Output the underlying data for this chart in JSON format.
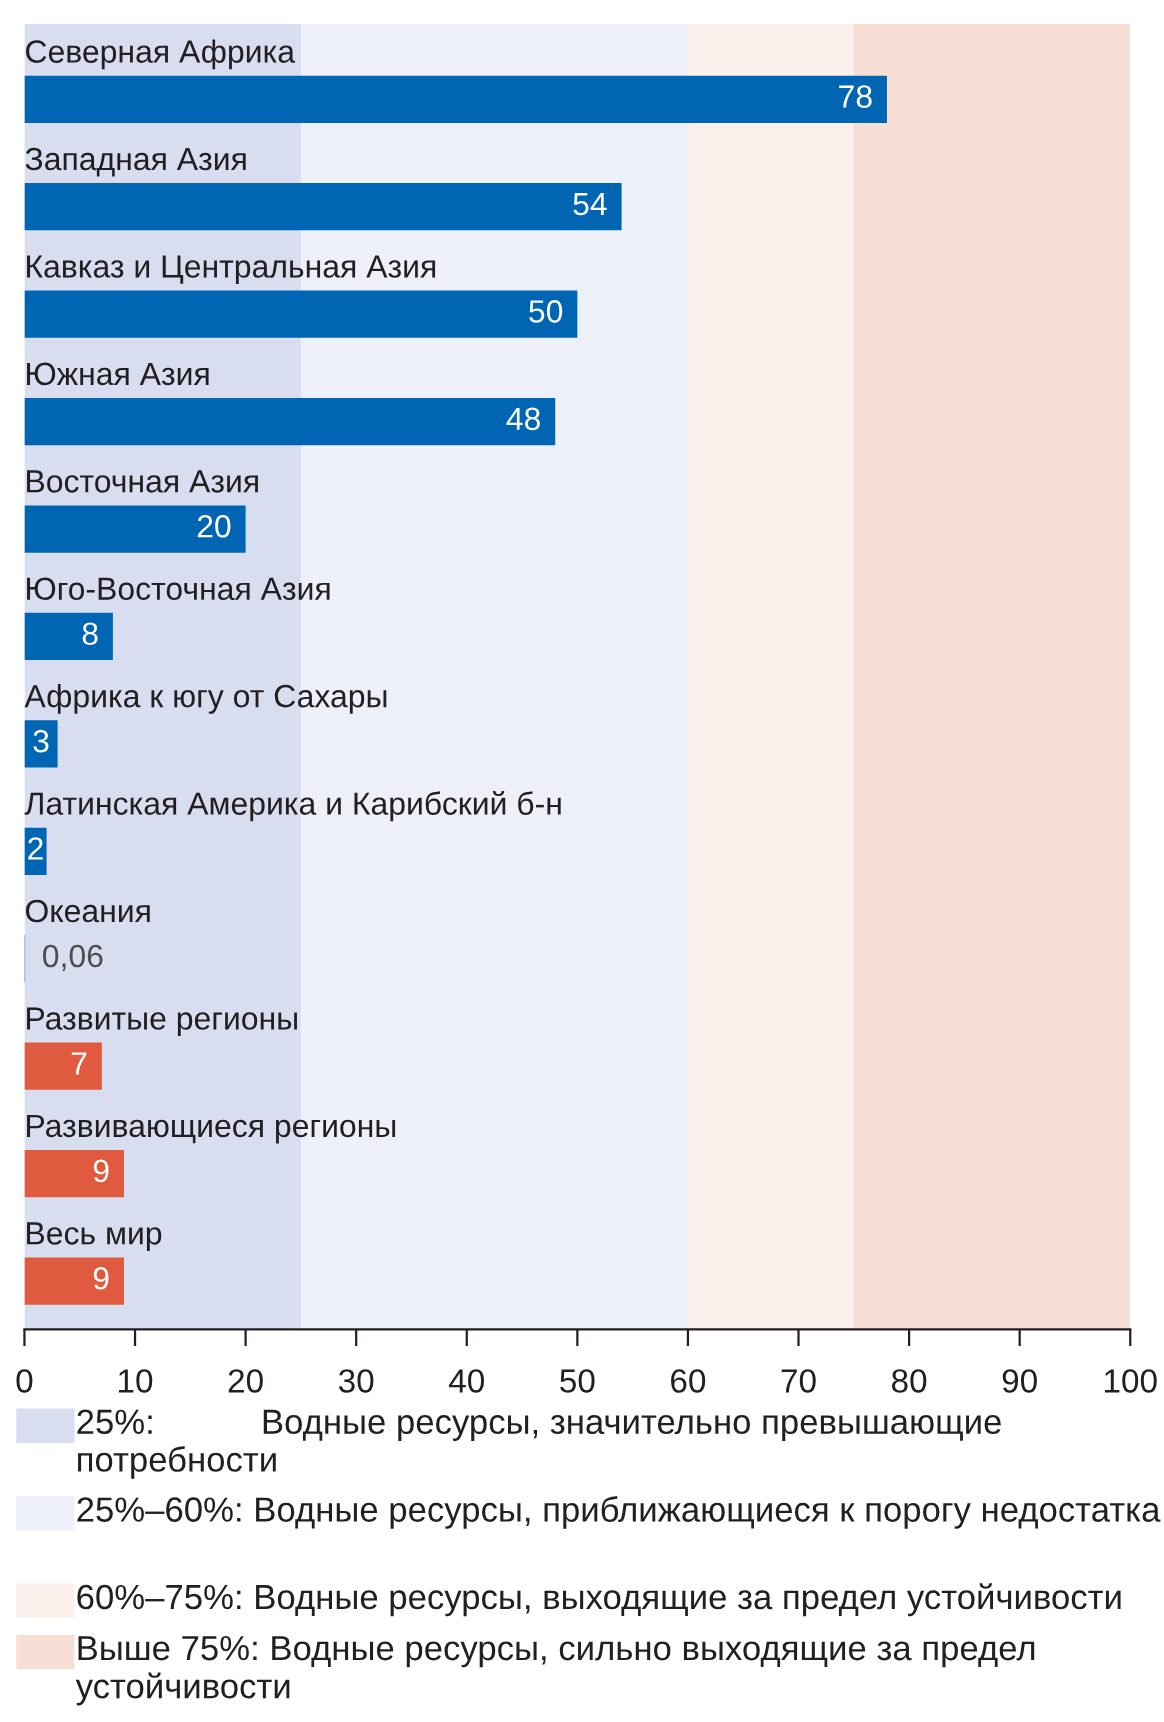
{
  "chart_data": {
    "type": "bar",
    "orientation": "horizontal",
    "categories": [
      "Северная Африка",
      "Западная Азия",
      "Кавказ и Центральная Азия",
      "Южная Азия",
      "Восточная Азия",
      "Юго-Восточная Азия",
      "Африка к югу от Сахары",
      "Латинская Америка и Карибский б-н",
      "Океания",
      "Развитые регионы",
      "Развивающиеся регионы",
      "Весь мир"
    ],
    "values": [
      78,
      54,
      50,
      48,
      20,
      8,
      3,
      2,
      0.06,
      7,
      9,
      9
    ],
    "value_labels": [
      "78",
      "54",
      "50",
      "48",
      "20",
      "8",
      "3",
      "2",
      "0,06",
      "7",
      "9",
      "9"
    ],
    "colors": [
      "#0066b3",
      "#0066b3",
      "#0066b3",
      "#0066b3",
      "#0066b3",
      "#0066b3",
      "#0066b3",
      "#0066b3",
      "#0066b3",
      "#e05a3f",
      "#e05a3f",
      "#e05a3f"
    ],
    "xlim": [
      0,
      100
    ],
    "xticks": [
      0,
      10,
      20,
      30,
      40,
      50,
      60,
      70,
      80,
      90,
      100
    ],
    "bands": [
      {
        "axis": "x",
        "from": 0,
        "to": 25,
        "color": "#d8ddf0",
        "label": "25%:           Водные ресурсы, значительно превышающие потребности"
      },
      {
        "axis": "x",
        "from": 25,
        "to": 60,
        "color": "#edf0f9",
        "label": "25%–60%: Водные ресурсы, приближающиеся к порогу недостатка"
      },
      {
        "axis": "x",
        "from": 60,
        "to": 75,
        "color": "#fcf0ec",
        "label": "60%–75%: Водные ресурсы, выходящие за предел устойчивости"
      },
      {
        "axis": "x",
        "from": 75,
        "to": 100,
        "color": "#f7dfd5",
        "label": "Выше 75%: Водные ресурсы, сильно выходящие за предел устойчивости"
      }
    ],
    "legend": "bottom",
    "grid": false
  }
}
